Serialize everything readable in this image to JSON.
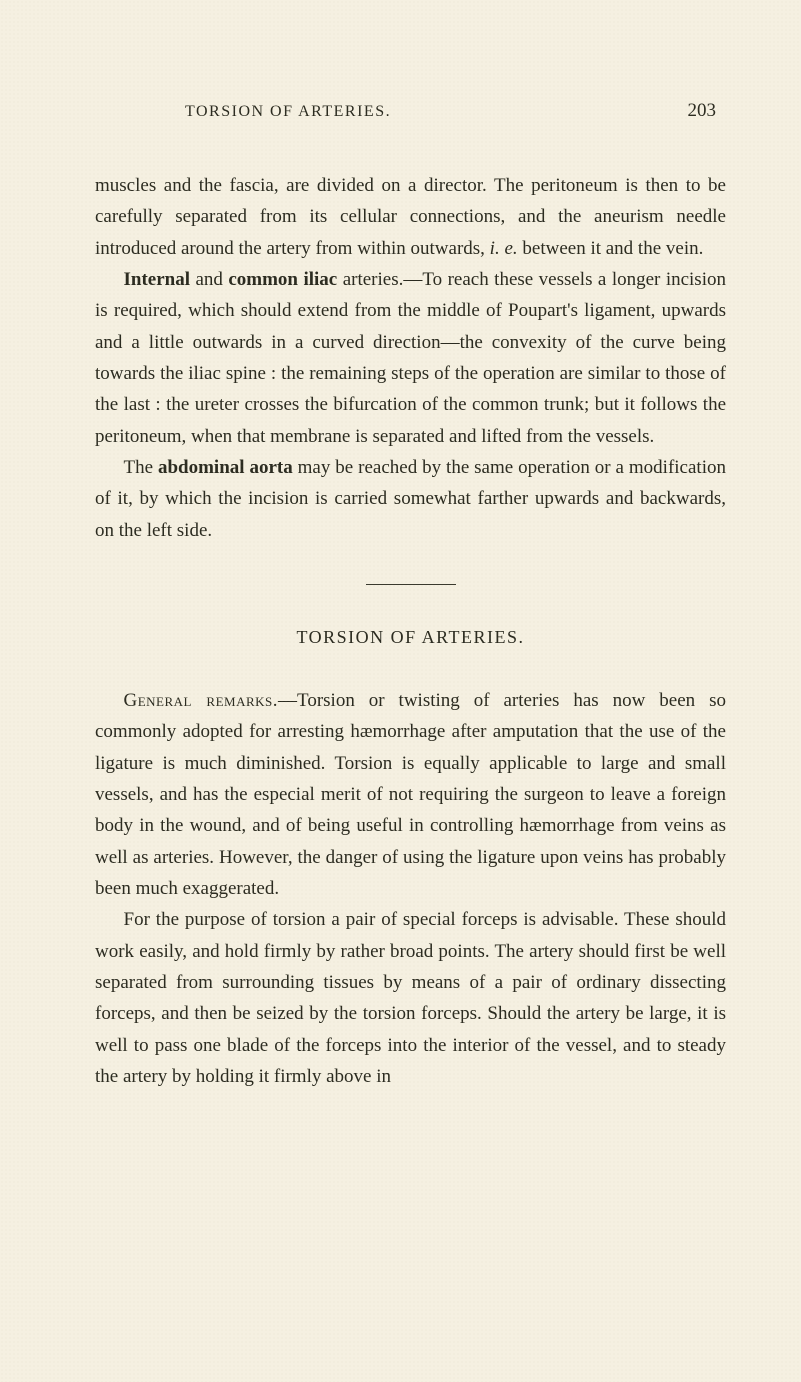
{
  "page": {
    "running_title": "TORSION OF ARTERIES.",
    "page_number": "203",
    "background_color": "#f5f0e1",
    "text_color": "#2b2b20",
    "body_font_size": 19,
    "line_height": 1.65
  },
  "paragraphs": {
    "p1_pre": "muscles and the fascia, are divided on a director. The peritoneum is then to be carefully separated from its cellular connections, and the aneurism needle introduced around the artery from within outwards, ",
    "p1_italic": "i. e.",
    "p1_post": " between it and the vein.",
    "p2_bold1": "Internal",
    "p2_mid1": " and ",
    "p2_bold2": "common iliac",
    "p2_post": " arteries.—To reach these vessels a longer incision is required, which should extend from the middle of Poupart's ligament, upwards and a little outwards in a curved direction—the convexity of the curve being towards the iliac spine : the remaining steps of the operation are similar to those of the last : the ureter crosses the bifurcation of the common trunk; but it follows the peri­toneum, when that membrane is separated and lifted from the vessels.",
    "p3_pre": "The ",
    "p3_bold": "abdominal aorta",
    "p3_post": " may be reached by the same operation or a modification of it, by which the incision is carried somewhat farther upwards and backwards, on the left side.",
    "section_heading": "TORSION OF ARTERIES.",
    "p4_sc": "General remarks.",
    "p4_post": "—Torsion or twisting of arteries has now been so commonly adopted for arresting hæmorrhage after amputation that the use of the ligature is much diminished. Torsion is equally applicable to large and small vessels, and has the especial merit of not requiring the surgeon to leave a foreign body in the wound, and of being useful in controlling hæmor­rhage from veins as well as arteries. However, the danger of using the ligature upon veins has probably been much exaggerated.",
    "p5": "For the purpose of torsion a pair of special forceps is advisable. These should work easily, and hold firmly by rather broad points. The artery should first be well separated from surrounding tissues by means of a pair of ordinary dissecting forceps, and then be seized by the torsion forceps. Should the artery be large, it is well to pass one blade of the forceps into the interior of the vessel, and to steady the artery by holding it firmly above in"
  }
}
